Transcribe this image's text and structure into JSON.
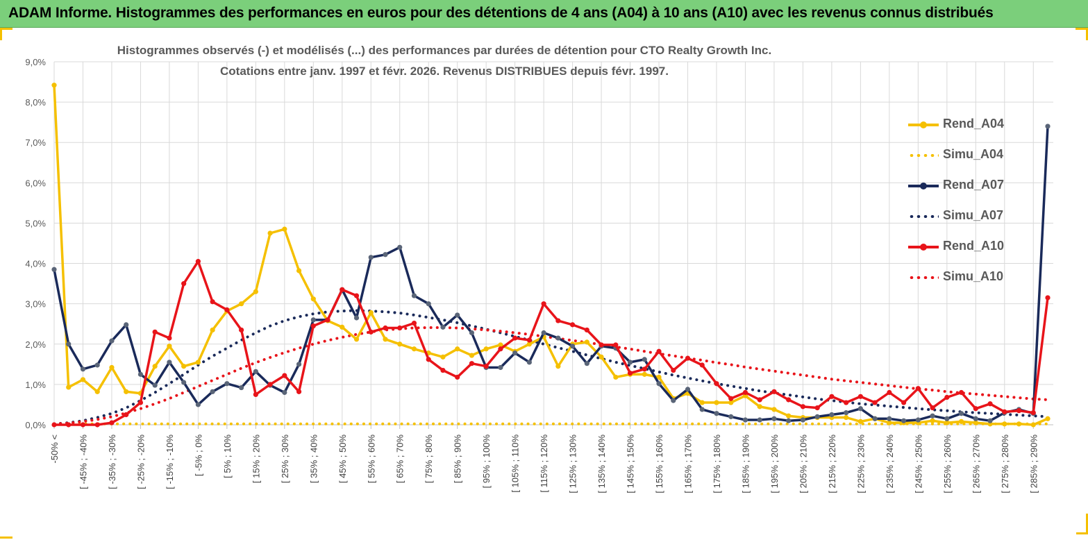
{
  "banner": {
    "title": "ADAM Informe. Histogrammes des performances en euros pour des détentions de 4 ans (A04) à 10 ans (A10) avec les revenus connus distribués"
  },
  "chart_data": {
    "type": "line",
    "title": "Histogrammes observés (-)  et modélisés (...) des performances par durées de détention pour CTO Realty Growth Inc.",
    "subtitle": "Cotations entre janv. 1997 et févr. 2026. Revenus DISTRIBUES depuis févr. 1997.",
    "xlabel": "",
    "ylabel": "",
    "ylim": [
      0,
      9
    ],
    "y_unit": "%",
    "y_ticks": [
      "0,0%",
      "1,0%",
      "2,0%",
      "3,0%",
      "4,0%",
      "5,0%",
      "6,0%",
      "7,0%",
      "8,0%",
      "9,0%"
    ],
    "x_tick_labels": [
      "-50% <",
      "[ -45% ; -40%",
      "[ -35% ; -30%",
      "[ -25% ; -20%",
      "[ -15% ; -10%",
      "[ -5% ; 0%",
      "[ 5% ; 10%",
      "[ 15% ; 20%",
      "[ 25% ; 30%",
      "[ 35% ; 40%",
      "[ 45% ; 50%",
      "[ 55% ; 60%",
      "[ 65% ; 70%",
      "[ 75% ; 80%",
      "[ 85% ; 90%",
      "[ 95% ; 100%",
      "[ 105% ; 110%",
      "[ 115% ; 120%",
      "[ 125% ; 130%",
      "[ 135% ; 140%",
      "[ 145% ; 150%",
      "[ 155% ; 160%",
      "[ 165% ; 170%",
      "[ 175% ; 180%",
      "[ 185% ; 190%",
      "[ 195% ; 200%",
      "[ 205% ; 210%",
      "[ 215% ; 220%",
      "[ 225% ; 230%",
      "[ 235% ; 240%",
      "[ 245% ; 250%",
      "[ 255% ; 260%",
      "[ 265% ; 270%",
      "[ 275% ; 280%",
      "[ 285% ; 290%"
    ],
    "n_points": 70,
    "grid": true,
    "legend_position": "right",
    "series": [
      {
        "name": "Rend_A04",
        "color": "#f5c000",
        "style": "solid-markers",
        "values": [
          8.42,
          0.93,
          1.12,
          0.82,
          1.42,
          0.82,
          0.78,
          1.45,
          1.95,
          1.45,
          1.55,
          2.35,
          2.82,
          3.0,
          3.3,
          4.75,
          4.85,
          3.82,
          3.12,
          2.58,
          2.42,
          2.12,
          2.78,
          2.12,
          2.0,
          1.88,
          1.78,
          1.68,
          1.88,
          1.72,
          1.88,
          1.98,
          1.82,
          2.0,
          2.18,
          1.45,
          2.0,
          2.05,
          1.68,
          1.18,
          1.25,
          1.25,
          1.18,
          0.65,
          0.78,
          0.55,
          0.55,
          0.55,
          0.72,
          0.45,
          0.38,
          0.22,
          0.18,
          0.18,
          0.18,
          0.18,
          0.08,
          0.15,
          0.05,
          0.05,
          0.05,
          0.1,
          0.05,
          0.08,
          0.05,
          0.02,
          0.02,
          0.02,
          0.0,
          0.15
        ]
      },
      {
        "name": "Simu_A04",
        "color": "#f5c000",
        "style": "dotted",
        "values": [
          0.02,
          0.02,
          0.02,
          0.02,
          0.02,
          0.02,
          0.02,
          0.02,
          0.02,
          0.02,
          0.02,
          0.02,
          0.02,
          0.02,
          0.02,
          0.02,
          0.02,
          0.02,
          0.02,
          0.02,
          0.02,
          0.02,
          0.02,
          0.02,
          0.02,
          0.02,
          0.02,
          0.02,
          0.02,
          0.02,
          0.02,
          0.02,
          0.02,
          0.02,
          0.02,
          0.02,
          0.02,
          0.02,
          0.02,
          0.02,
          0.02,
          0.02,
          0.02,
          0.02,
          0.02,
          0.02,
          0.02,
          0.02,
          0.02,
          0.02,
          0.02,
          0.02,
          0.02,
          0.02,
          0.02,
          0.02,
          0.02,
          0.02,
          0.02,
          0.02,
          0.02,
          0.02,
          0.02,
          0.02,
          0.02,
          0.02,
          0.02,
          0.02,
          0.02,
          0.02
        ]
      },
      {
        "name": "Rend_A07",
        "color": "#1a2a5a",
        "style": "solid-markers",
        "values": [
          3.85,
          2.0,
          1.38,
          1.48,
          2.08,
          2.48,
          1.25,
          0.98,
          1.55,
          1.05,
          0.5,
          0.82,
          1.02,
          0.92,
          1.32,
          0.98,
          0.8,
          1.5,
          2.6,
          2.6,
          3.35,
          2.65,
          4.15,
          4.22,
          4.4,
          3.2,
          3.0,
          2.42,
          2.72,
          2.28,
          1.42,
          1.42,
          1.78,
          1.55,
          2.28,
          2.15,
          1.95,
          1.52,
          1.95,
          1.9,
          1.55,
          1.62,
          1.02,
          0.6,
          0.88,
          0.38,
          0.28,
          0.2,
          0.12,
          0.12,
          0.15,
          0.1,
          0.12,
          0.2,
          0.25,
          0.3,
          0.4,
          0.15,
          0.15,
          0.1,
          0.12,
          0.22,
          0.15,
          0.28,
          0.15,
          0.1,
          0.3,
          0.38,
          0.28,
          7.4
        ]
      },
      {
        "name": "Simu_A07",
        "color": "#1a2a5a",
        "style": "dotted",
        "values": [
          0.02,
          0.05,
          0.1,
          0.18,
          0.28,
          0.42,
          0.6,
          0.8,
          1.02,
          1.25,
          1.48,
          1.7,
          1.9,
          2.1,
          2.28,
          2.45,
          2.58,
          2.68,
          2.75,
          2.8,
          2.82,
          2.83,
          2.82,
          2.8,
          2.77,
          2.72,
          2.66,
          2.6,
          2.53,
          2.45,
          2.37,
          2.28,
          2.19,
          2.1,
          2.0,
          1.91,
          1.82,
          1.73,
          1.64,
          1.55,
          1.47,
          1.39,
          1.31,
          1.23,
          1.16,
          1.09,
          1.02,
          0.96,
          0.9,
          0.84,
          0.79,
          0.74,
          0.69,
          0.64,
          0.6,
          0.56,
          0.52,
          0.49,
          0.46,
          0.43,
          0.4,
          0.37,
          0.35,
          0.32,
          0.3,
          0.28,
          0.26,
          0.24,
          0.22,
          0.2
        ]
      },
      {
        "name": "Rend_A10",
        "color": "#e8141a",
        "style": "solid-markers",
        "values": [
          0.0,
          0.0,
          0.0,
          0.0,
          0.05,
          0.25,
          0.55,
          2.3,
          2.15,
          3.5,
          4.05,
          3.05,
          2.85,
          2.35,
          0.75,
          1.0,
          1.22,
          0.82,
          2.45,
          2.6,
          3.35,
          3.2,
          2.3,
          2.4,
          2.4,
          2.52,
          1.62,
          1.35,
          1.18,
          1.52,
          1.45,
          1.88,
          2.15,
          2.1,
          3.0,
          2.58,
          2.48,
          2.35,
          1.98,
          1.98,
          1.28,
          1.38,
          1.82,
          1.35,
          1.65,
          1.48,
          1.02,
          0.65,
          0.8,
          0.62,
          0.82,
          0.62,
          0.45,
          0.42,
          0.7,
          0.55,
          0.7,
          0.55,
          0.8,
          0.55,
          0.9,
          0.42,
          0.68,
          0.8,
          0.4,
          0.52,
          0.32,
          0.35,
          0.3,
          3.15
        ]
      },
      {
        "name": "Simu_A10",
        "color": "#e8141a",
        "style": "dotted",
        "values": [
          0.02,
          0.04,
          0.08,
          0.13,
          0.2,
          0.29,
          0.4,
          0.52,
          0.65,
          0.8,
          0.95,
          1.1,
          1.25,
          1.4,
          1.54,
          1.67,
          1.79,
          1.9,
          2.0,
          2.09,
          2.17,
          2.24,
          2.3,
          2.35,
          2.38,
          2.4,
          2.41,
          2.41,
          2.4,
          2.38,
          2.35,
          2.32,
          2.28,
          2.24,
          2.19,
          2.14,
          2.09,
          2.04,
          1.99,
          1.93,
          1.88,
          1.82,
          1.76,
          1.71,
          1.65,
          1.6,
          1.54,
          1.49,
          1.43,
          1.38,
          1.33,
          1.28,
          1.23,
          1.18,
          1.13,
          1.09,
          1.05,
          1.01,
          0.97,
          0.93,
          0.89,
          0.86,
          0.82,
          0.79,
          0.76,
          0.73,
          0.7,
          0.67,
          0.64,
          0.62
        ]
      }
    ]
  }
}
